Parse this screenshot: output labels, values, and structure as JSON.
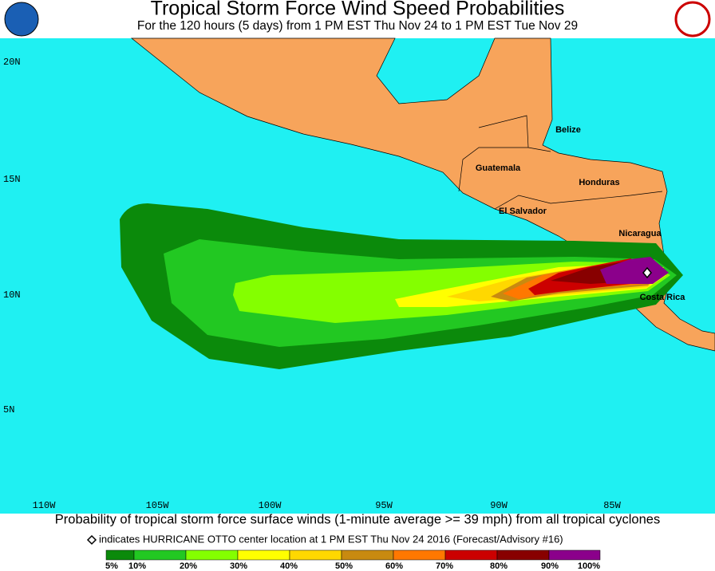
{
  "header": {
    "title": "Tropical Storm Force Wind Speed Probabilities",
    "subtitle": "For the 120 hours (5 days) from 1 PM EST Thu Nov 24 to 1 PM EST Tue Nov 29"
  },
  "map": {
    "lat_labels": [
      "20N",
      "15N",
      "10N",
      "5N"
    ],
    "lon_labels": [
      "110W",
      "105W",
      "100W",
      "95W",
      "90W",
      "85W"
    ],
    "place_labels": [
      "Belize",
      "Guatemala",
      "Honduras",
      "El Salvador",
      "Nicaragua",
      "Costa Rica"
    ]
  },
  "footer": {
    "description": "Probability of tropical storm force surface winds (1-minute average >= 39 mph) from all tropical cyclones",
    "note": "indicates HURRICANE OTTO center location at 1 PM EST Thu Nov 24 2016 (Forecast/Advisory #16)"
  },
  "legend": {
    "labels": [
      "5%",
      "10%",
      "20%",
      "30%",
      "40%",
      "50%",
      "60%",
      "70%",
      "80%",
      "90%",
      "100%"
    ],
    "colors": [
      "#0b8a0b",
      "#22c822",
      "#84ff00",
      "#ffff00",
      "#ffd800",
      "#c88a10",
      "#ff7800",
      "#cc0000",
      "#880000",
      "#8b008b"
    ]
  }
}
